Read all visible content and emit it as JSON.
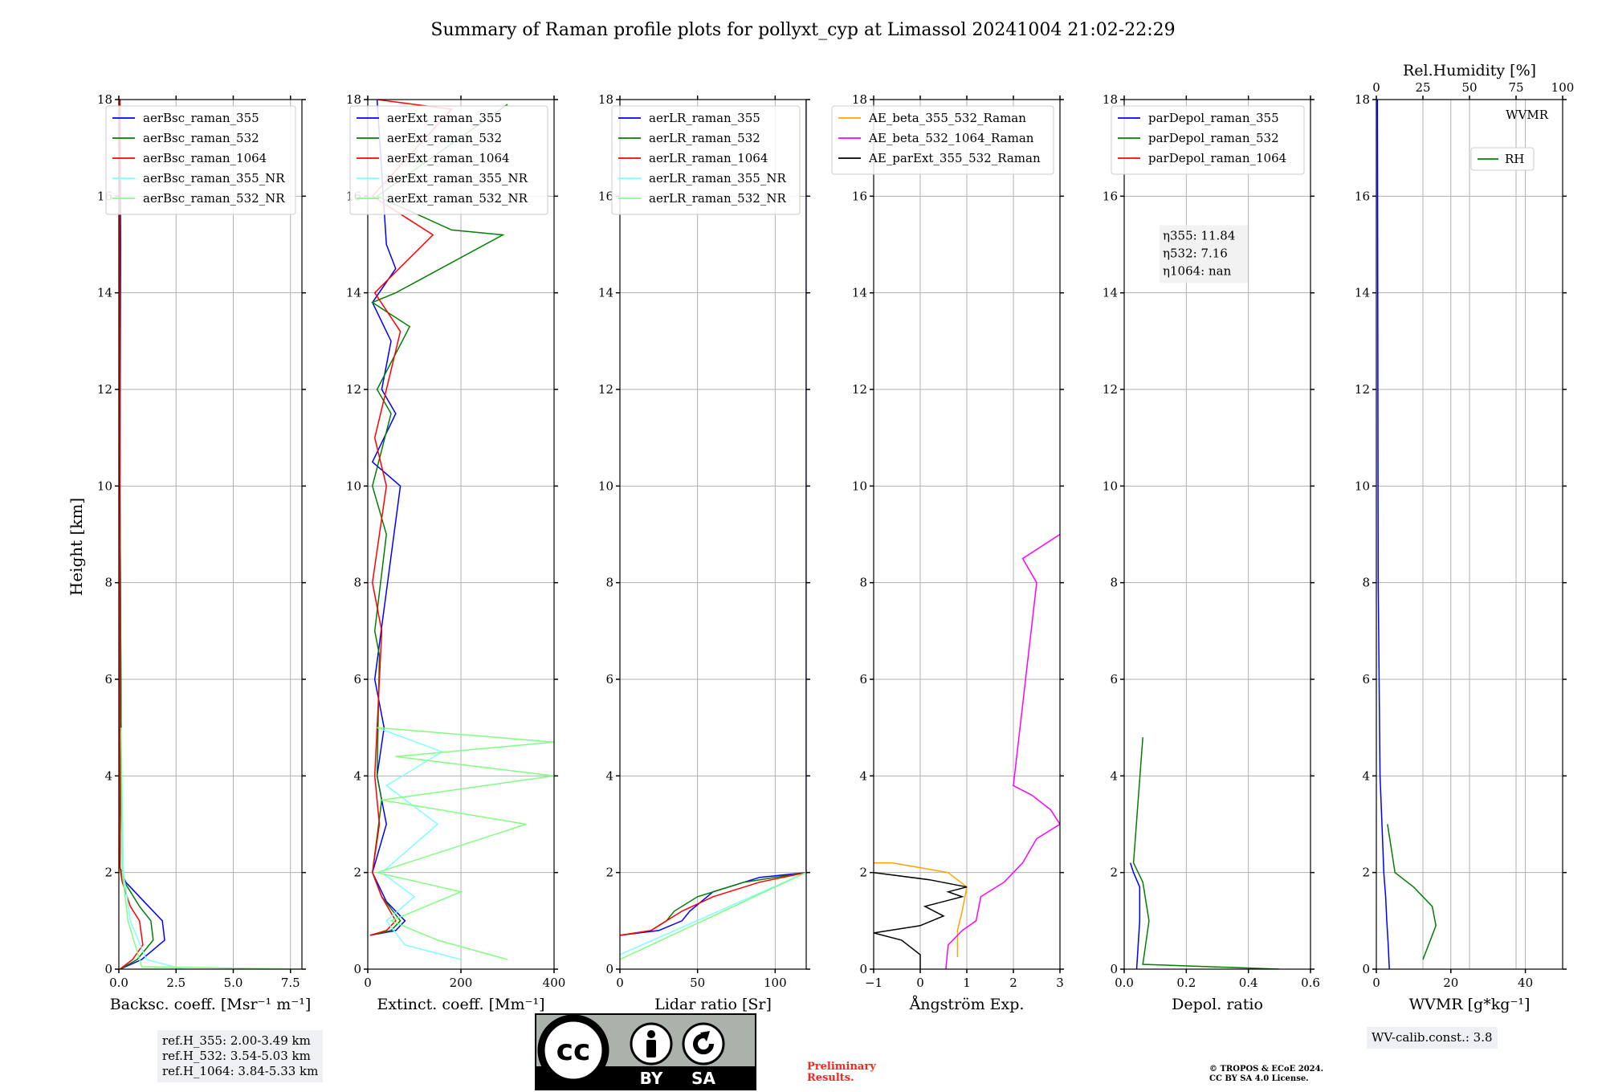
{
  "figure": {
    "title": "Summary of Raman profile plots for pollyxt_cyp at Limassol 20241004 21:02-22:29",
    "ylabel": "Height [km]",
    "ref_heights": [
      "ref.H_355: 2.00-3.49 km",
      "ref.H_532: 3.54-5.03 km",
      "ref.H_1064: 3.84-5.33 km"
    ],
    "wv_calib": "WV-calib.const.: 3.8",
    "preliminary": [
      "Preliminary",
      "Results."
    ],
    "copyright": [
      "© TROPOS & ECoE 2024.",
      "CC BY SA 4.0 License."
    ],
    "license_logo": {
      "cc": "cc",
      "by": "BY",
      "sa": "SA"
    },
    "colors": {
      "blue": "#0000ff",
      "green": "#008000",
      "red": "#ff0000",
      "cyan": "#80ffff",
      "lightgreen": "#80ff80",
      "orange": "#ffa500",
      "magenta": "#ff00ff",
      "black": "#000000"
    }
  },
  "chart_data": [
    {
      "type": "line",
      "panel": "backscatter",
      "xlabel": "Backsc. coeff. [Msr⁻¹ m⁻¹]",
      "ylabel": "Height [km]",
      "xlim": [
        0,
        8
      ],
      "ylim": [
        0,
        18
      ],
      "xticks": [
        0,
        2.5,
        5,
        7.5
      ],
      "xticklabels": [
        "0.0",
        "2.5",
        "5.0",
        "7.5"
      ],
      "yticks": [
        0,
        2,
        4,
        6,
        8,
        10,
        12,
        14,
        16,
        18
      ],
      "grid": true,
      "legend": "top-right",
      "series": [
        {
          "name": "aerBsc_raman_355",
          "color": "#0000ff",
          "x": [
            0.05,
            1.0,
            2.0,
            1.9,
            1.2,
            0.3,
            0.05,
            0.1,
            0.05,
            0.08,
            0.05
          ],
          "y": [
            0.0,
            0.2,
            0.6,
            1.0,
            1.35,
            1.8,
            2.1,
            5.0,
            10.0,
            15.0,
            18.0
          ]
        },
        {
          "name": "aerBsc_raman_532",
          "color": "#008000",
          "x": [
            0.05,
            0.8,
            1.5,
            1.4,
            0.9,
            0.25,
            0.05,
            0.1,
            0.05,
            0.05
          ],
          "y": [
            0.0,
            0.2,
            0.6,
            1.0,
            1.3,
            1.8,
            2.1,
            5.0,
            10.0,
            18.0
          ]
        },
        {
          "name": "aerBsc_raman_1064",
          "color": "#ff0000",
          "x": [
            0.05,
            0.6,
            1.05,
            0.9,
            0.5,
            0.15,
            0.05,
            0.05
          ],
          "y": [
            0.0,
            0.2,
            0.5,
            1.0,
            1.3,
            1.8,
            2.1,
            18.0
          ]
        },
        {
          "name": "aerBsc_raman_355_NR",
          "color": "#80ffff",
          "x": [
            2.8,
            1.2,
            0.5,
            0.2,
            0.1
          ],
          "y": [
            0.0,
            0.2,
            1.0,
            2.0,
            4.9
          ]
        },
        {
          "name": "aerBsc_raman_532_NR",
          "color": "#80ff80",
          "x": [
            8.0,
            1.0,
            0.4,
            0.15,
            0.1
          ],
          "y": [
            0.0,
            0.05,
            1.0,
            2.0,
            5.0
          ]
        }
      ],
      "annotations": []
    },
    {
      "type": "line",
      "panel": "extinction",
      "xlabel": "Extinct. coeff. [Mm⁻¹]",
      "xlim": [
        0,
        400
      ],
      "ylim": [
        0,
        18
      ],
      "xticks": [
        0,
        200,
        400
      ],
      "xticklabels": [
        "0",
        "200",
        "400"
      ],
      "yticks": [
        0,
        2,
        4,
        6,
        8,
        10,
        12,
        14,
        16,
        18
      ],
      "grid": true,
      "legend": "top-right",
      "series": [
        {
          "name": "aerExt_raman_355",
          "color": "#0000ff",
          "x": [
            5,
            60,
            80,
            40,
            10,
            40,
            20,
            35,
            15,
            70,
            10,
            60,
            30,
            50,
            10,
            60,
            40,
            20
          ],
          "y": [
            0.7,
            0.8,
            1.0,
            1.4,
            2.0,
            3.0,
            4.0,
            5.0,
            6.0,
            10.0,
            10.5,
            11.5,
            12.0,
            13.0,
            13.8,
            14.5,
            15.0,
            18.0
          ]
        },
        {
          "name": "aerExt_raman_532",
          "color": "#008000",
          "x": [
            5,
            50,
            70,
            30,
            10,
            30,
            20,
            25,
            15,
            40,
            10,
            50,
            20,
            90,
            10,
            60,
            290,
            180,
            20,
            300
          ],
          "y": [
            0.7,
            0.8,
            1.0,
            1.5,
            2.0,
            3.5,
            4.0,
            6.5,
            7.0,
            9.0,
            10.0,
            11.5,
            12.0,
            13.3,
            13.8,
            14.0,
            15.2,
            15.3,
            16.0,
            17.9
          ]
        },
        {
          "name": "aerExt_raman_1064",
          "color": "#ff0000",
          "x": [
            5,
            40,
            60,
            30,
            10,
            25,
            15,
            30,
            10,
            40,
            15,
            70,
            15,
            140,
            10,
            180,
            20
          ],
          "y": [
            0.7,
            0.8,
            1.0,
            1.5,
            2.0,
            3.0,
            4.0,
            7.0,
            8.0,
            10.0,
            11.0,
            13.2,
            14.0,
            15.2,
            16.0,
            17.8,
            18.0
          ]
        },
        {
          "name": "aerExt_raman_355_NR",
          "color": "#80ffff",
          "x": [
            200,
            80,
            40,
            100,
            30,
            150,
            40,
            160,
            20
          ],
          "y": [
            0.2,
            0.5,
            1.0,
            1.5,
            2.0,
            3.0,
            3.8,
            4.5,
            5.0
          ]
        },
        {
          "name": "aerExt_raman_532_NR",
          "color": "#80ff80",
          "x": [
            300,
            150,
            50,
            200,
            20,
            340,
            30,
            400,
            60,
            400,
            20
          ],
          "y": [
            0.2,
            0.6,
            1.0,
            1.6,
            2.0,
            3.0,
            3.5,
            4.0,
            4.4,
            4.7,
            5.0
          ]
        }
      ],
      "annotations": []
    },
    {
      "type": "line",
      "panel": "lidar_ratio",
      "xlabel": "Lidar ratio [Sr]",
      "xlim": [
        0,
        120
      ],
      "ylim": [
        0,
        18
      ],
      "xticks": [
        0,
        50,
        100
      ],
      "xticklabels": [
        "0",
        "50",
        "100"
      ],
      "yticks": [
        0,
        2,
        4,
        6,
        8,
        10,
        12,
        14,
        16,
        18
      ],
      "grid": true,
      "legend": "top-right",
      "series": [
        {
          "name": "aerLR_raman_355",
          "color": "#0000ff",
          "x": [
            0,
            25,
            40,
            45,
            60,
            90,
            120,
            120
          ],
          "y": [
            0.7,
            0.8,
            1.0,
            1.2,
            1.6,
            1.9,
            2.0,
            18.0
          ]
        },
        {
          "name": "aerLR_raman_532",
          "color": "#008000",
          "x": [
            0,
            20,
            30,
            35,
            50,
            80,
            120
          ],
          "y": [
            0.7,
            0.8,
            1.0,
            1.2,
            1.5,
            1.8,
            2.0
          ]
        },
        {
          "name": "aerLR_raman_1064",
          "color": "#ff0000",
          "x": [
            0,
            20,
            30,
            40,
            60,
            90,
            120
          ],
          "y": [
            0.7,
            0.8,
            1.0,
            1.2,
            1.5,
            1.8,
            2.0
          ]
        },
        {
          "name": "aerLR_raman_355_NR",
          "color": "#80ffff",
          "x": [
            0,
            120
          ],
          "y": [
            0.3,
            2.0
          ]
        },
        {
          "name": "aerLR_raman_532_NR",
          "color": "#80ff80",
          "x": [
            0,
            120
          ],
          "y": [
            0.2,
            2.0
          ]
        }
      ],
      "annotations": []
    },
    {
      "type": "line",
      "panel": "angstrom",
      "xlabel": "Ångström Exp.",
      "xlim": [
        -1,
        3
      ],
      "ylim": [
        0,
        18
      ],
      "xticks": [
        -1,
        0,
        1,
        2,
        3
      ],
      "xticklabels": [
        "−1",
        "0",
        "1",
        "2",
        "3"
      ],
      "yticks": [
        0,
        2,
        4,
        6,
        8,
        10,
        12,
        14,
        16,
        18
      ],
      "grid": true,
      "legend": "top-right",
      "series": [
        {
          "name": "AE_beta_355_532_Raman",
          "color": "#ffa500",
          "x": [
            0.8,
            0.8,
            0.9,
            1.0,
            0.6,
            -0.6,
            -1.0
          ],
          "y": [
            0.25,
            0.8,
            1.2,
            1.7,
            2.0,
            2.2,
            2.2
          ]
        },
        {
          "name": "AE_beta_532_1064_Raman",
          "color": "#ff00ff",
          "x": [
            0.55,
            0.6,
            0.9,
            1.2,
            1.3,
            1.8,
            2.2,
            2.5,
            3.0,
            2.8,
            2.4,
            2.0,
            2.5,
            2.2,
            3.0
          ],
          "y": [
            0.0,
            0.5,
            0.8,
            1.0,
            1.5,
            1.8,
            2.2,
            2.7,
            3.0,
            3.3,
            3.6,
            3.8,
            8.0,
            8.5,
            9.0
          ]
        },
        {
          "name": "AE_parExt_355_532_Raman",
          "color": "#000000",
          "x": [
            0.0,
            0.0,
            -0.4,
            -1.0,
            0.0,
            0.5,
            0.1,
            0.9,
            0.6,
            1.0,
            0.2,
            -1.0
          ],
          "y": [
            0.0,
            0.3,
            0.6,
            0.75,
            0.9,
            1.1,
            1.3,
            1.5,
            1.6,
            1.7,
            1.85,
            2.0
          ]
        }
      ],
      "annotations": []
    },
    {
      "type": "line",
      "panel": "depolarization",
      "xlabel": "Depol. ratio",
      "xlim": [
        0,
        0.6
      ],
      "ylim": [
        0,
        18
      ],
      "xticks": [
        0,
        0.2,
        0.4,
        0.6
      ],
      "xticklabels": [
        "0.0",
        "0.2",
        "0.4",
        "0.6"
      ],
      "yticks": [
        0,
        2,
        4,
        6,
        8,
        10,
        12,
        14,
        16,
        18
      ],
      "grid": true,
      "legend": "top-right",
      "series": [
        {
          "name": "parDepol_raman_355",
          "color": "#0000ff",
          "x": [
            0.04,
            0.05,
            0.05,
            0.03,
            0.02
          ],
          "y": [
            0.0,
            1.0,
            1.7,
            2.0,
            2.2
          ]
        },
        {
          "name": "parDepol_raman_532",
          "color": "#008000",
          "x": [
            0.5,
            0.06,
            0.08,
            0.06,
            0.03,
            0.06
          ],
          "y": [
            0.0,
            0.1,
            1.0,
            1.8,
            2.2,
            4.8
          ]
        },
        {
          "name": "parDepol_raman_1064",
          "color": "#ff0000",
          "x": [],
          "y": []
        }
      ],
      "annotations": [
        "η355: 11.84",
        "η532: 7.16",
        "η1064: nan"
      ]
    },
    {
      "type": "line",
      "panel": "wvmr_rh",
      "xlabel": "WVMR [g*kg⁻¹]",
      "top_xlabel": "Rel.Humidity [%]",
      "xlim": [
        0,
        50
      ],
      "ylim": [
        0,
        18
      ],
      "xticks": [
        0,
        20,
        40
      ],
      "xticklabels": [
        "0",
        "20",
        "40"
      ],
      "top_xlim": [
        0,
        100
      ],
      "top_xticks": [
        0,
        25,
        50,
        75,
        100
      ],
      "top_xticklabels": [
        "0",
        "25",
        "50",
        "75",
        "100"
      ],
      "yticks": [
        0,
        2,
        4,
        6,
        8,
        10,
        12,
        14,
        16,
        18
      ],
      "grid": true,
      "series": [
        {
          "name": "WVMR",
          "color": "#0000ff",
          "x": [
            3.5,
            3.2,
            2.8,
            2.5,
            2.0,
            1.5,
            1.0,
            0.5,
            0.3
          ],
          "y": [
            0.0,
            0.5,
            1.0,
            1.5,
            2.0,
            3.0,
            4.0,
            8.0,
            18.0
          ]
        },
        {
          "name": "RH",
          "color": "#008000",
          "x": [
            25,
            28,
            32,
            30,
            20,
            10,
            8,
            6
          ],
          "y": [
            0.2,
            0.5,
            0.9,
            1.3,
            1.7,
            2.0,
            2.5,
            3.0
          ]
        }
      ],
      "annotations": []
    }
  ]
}
